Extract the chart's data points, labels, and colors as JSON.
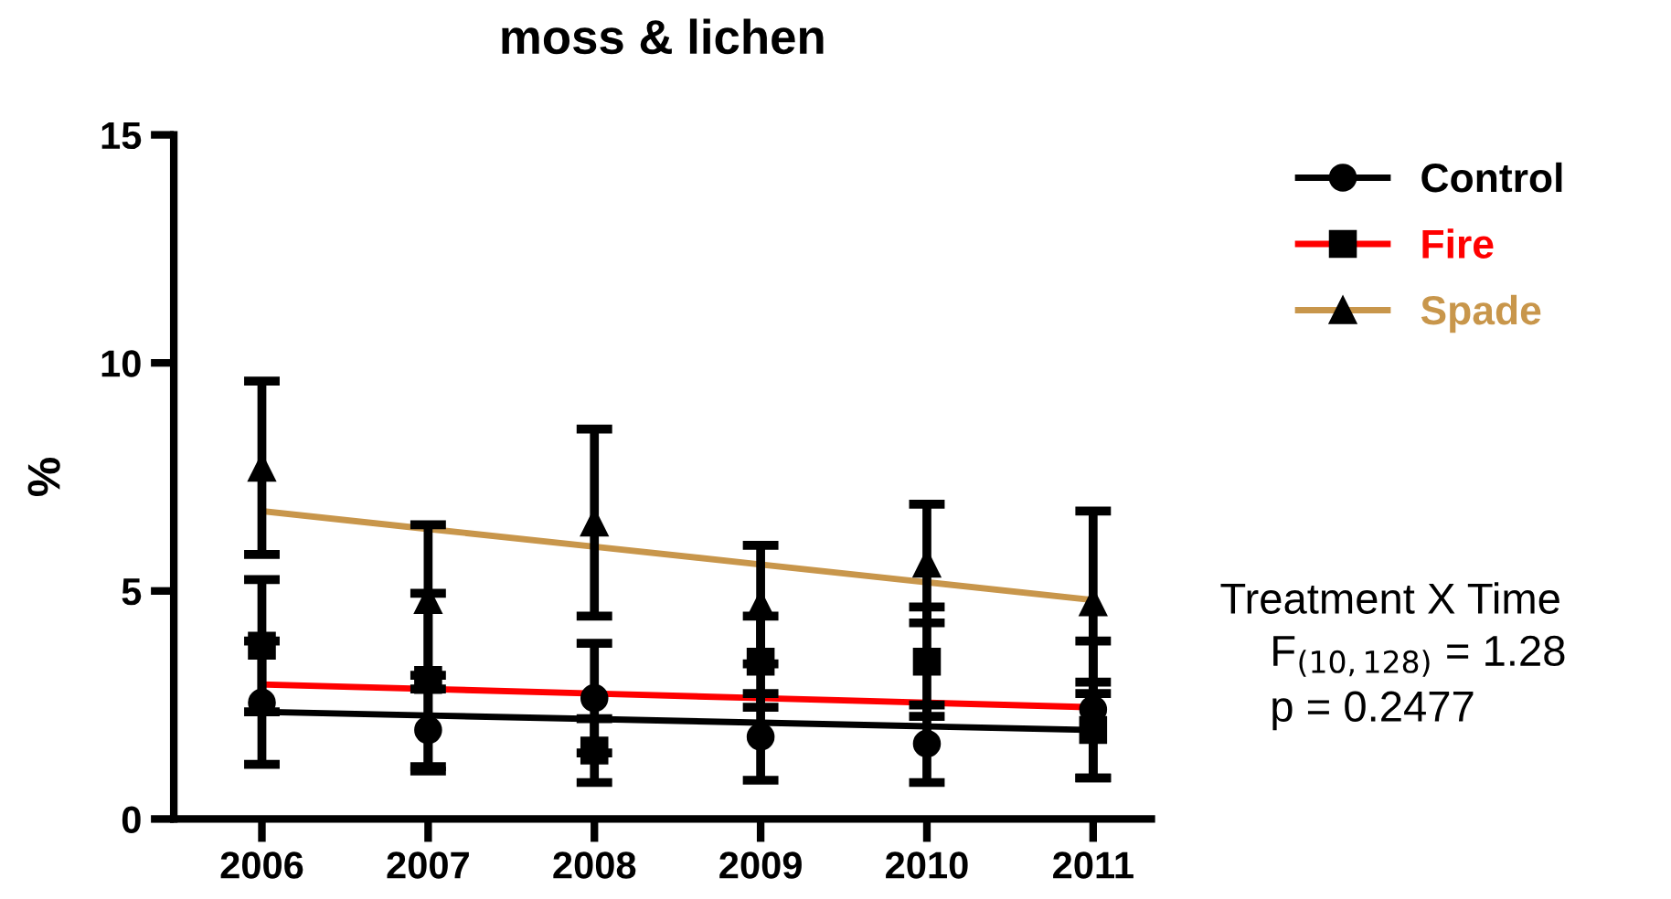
{
  "chart_data": {
    "type": "scatter",
    "title": "moss & lichen",
    "ylabel": "%",
    "x": [
      2006,
      2007,
      2008,
      2009,
      2010,
      2011
    ],
    "series": [
      {
        "color": "#000000",
        "marker": "circle",
        "values": [
          2.55,
          1.95,
          2.65,
          1.8,
          1.65,
          2.4
        ],
        "errors": [
          1.35,
          0.9,
          1.2,
          0.95,
          0.85,
          1.5
        ]
      },
      {
        "color": "#000000",
        "marker": "square",
        "values": [
          3.8,
          3.05,
          1.5,
          3.45,
          3.45,
          1.95
        ],
        "errors": [
          1.45,
          1.9,
          0.7,
          1.0,
          1.2,
          1.05
        ]
      },
      {
        "color": "#000000",
        "marker": "triangle",
        "values": [
          7.7,
          4.8,
          6.5,
          4.7,
          5.6,
          4.75
        ],
        "errors": [
          1.9,
          1.65,
          2.05,
          1.3,
          1.3,
          2.0
        ]
      },
      {
        "type": "line",
        "name": "Control",
        "color": "#000000",
        "values": [
          2.35,
          2.27,
          2.19,
          2.11,
          2.03,
          1.95
        ]
      },
      {
        "type": "line",
        "name": "Fire",
        "color": "#ff0000",
        "values": [
          2.95,
          2.85,
          2.75,
          2.65,
          2.55,
          2.45
        ]
      },
      {
        "type": "line",
        "name": "Spade",
        "color": "#c8964b",
        "values": [
          6.75,
          6.36,
          5.97,
          5.58,
          5.19,
          4.8
        ]
      }
    ],
    "xlim": [
      2005.47,
      2011.35
    ],
    "xticks": [
      2006,
      2007,
      2008,
      2009,
      2010,
      2011
    ],
    "ylim": [
      0,
      15
    ],
    "yticks": [
      0,
      5,
      10,
      15
    ],
    "grid": false,
    "legend": "right",
    "annotations": [
      "Treatment X Time",
      "F$_{(10,128)}$ = 1.28",
      "p = 0.2477"
    ]
  }
}
